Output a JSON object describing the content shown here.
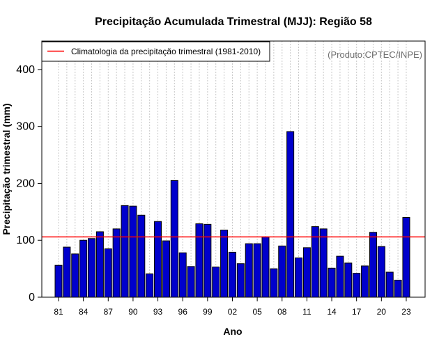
{
  "chart_data": {
    "type": "bar",
    "title": "Precipitação Acumulada Trimestral (MJJ): Região 58",
    "xlabel": "Ano",
    "ylabel": "Precipitação trimestral (mm)",
    "source_note": "(Produto:CPTEC/INPE)",
    "ylim": [
      0,
      450
    ],
    "y_ticks": [
      0,
      100,
      200,
      300,
      400
    ],
    "x_tick_labels": [
      "81",
      "84",
      "87",
      "90",
      "93",
      "96",
      "99",
      "02",
      "05",
      "08",
      "11",
      "14",
      "17",
      "20",
      "23"
    ],
    "x_tick_years": [
      1981,
      1984,
      1987,
      1990,
      1993,
      1996,
      1999,
      2002,
      2005,
      2008,
      2011,
      2014,
      2017,
      2020,
      2023
    ],
    "years": [
      1981,
      1982,
      1983,
      1984,
      1985,
      1986,
      1987,
      1988,
      1989,
      1990,
      1991,
      1992,
      1993,
      1994,
      1995,
      1996,
      1997,
      1998,
      1999,
      2000,
      2001,
      2002,
      2003,
      2004,
      2005,
      2006,
      2007,
      2008,
      2009,
      2010,
      2011,
      2012,
      2013,
      2014,
      2015,
      2016,
      2017,
      2018,
      2019,
      2020,
      2021,
      2022,
      2023
    ],
    "values": [
      56,
      88,
      76,
      100,
      103,
      115,
      85,
      120,
      161,
      160,
      144,
      41,
      133,
      99,
      205,
      78,
      54,
      129,
      128,
      53,
      118,
      79,
      59,
      94,
      94,
      106,
      50,
      90,
      291,
      69,
      87,
      124,
      120,
      51,
      72,
      60,
      42,
      55,
      114,
      89,
      44,
      30,
      140
    ],
    "climatology": {
      "label": "Climatologia da precipitação trimestral (1981-2010)",
      "value": 106,
      "color": "#ff0000"
    },
    "bar_color": "#0000cc",
    "grid": "vertical dotted",
    "legend_position": "top-left"
  }
}
